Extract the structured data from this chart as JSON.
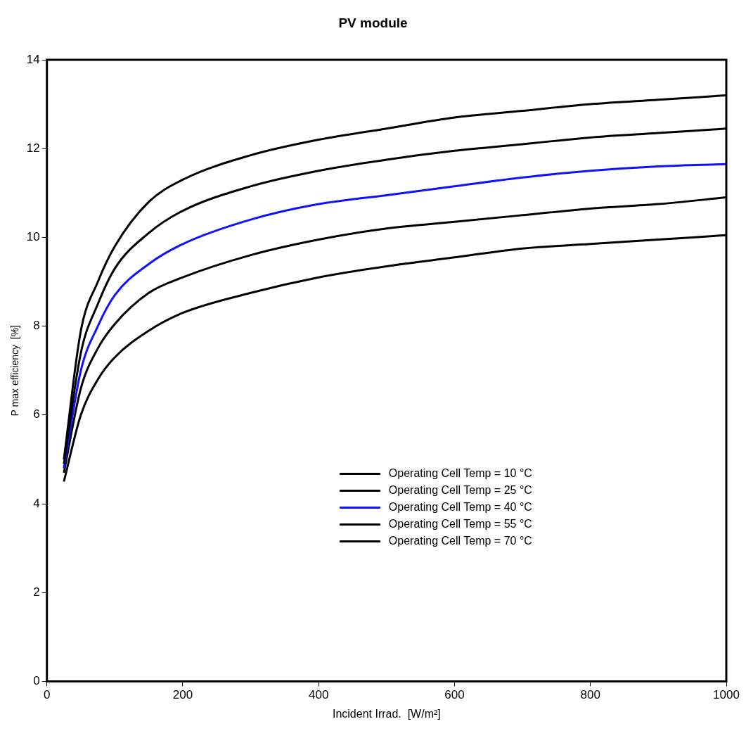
{
  "chart_data": {
    "type": "line",
    "title": "PV module",
    "xlabel": "Incident Irrad.  [W/m²]",
    "ylabel": "P max efficiency  [%]",
    "x": [
      25,
      50,
      75,
      100,
      150,
      200,
      300,
      400,
      500,
      600,
      700,
      800,
      900,
      1000
    ],
    "xlim": [
      0,
      1000
    ],
    "xticks": [
      0,
      200,
      400,
      600,
      800,
      1000
    ],
    "ylim": [
      0,
      14
    ],
    "yticks": [
      0,
      2,
      4,
      6,
      8,
      10,
      12,
      14
    ],
    "grid": false,
    "legend": "center",
    "marker": "none",
    "line_style": "solid",
    "series": [
      {
        "name": "Operating Cell Temp = 10 °C",
        "color": "#000000",
        "values": [
          5.0,
          7.9,
          9.0,
          9.8,
          10.8,
          11.3,
          11.85,
          12.2,
          12.45,
          12.7,
          12.85,
          13.0,
          13.1,
          13.2
        ]
      },
      {
        "name": "Operating Cell Temp = 25 °C",
        "color": "#000000",
        "values": [
          4.9,
          7.4,
          8.5,
          9.3,
          10.1,
          10.6,
          11.15,
          11.5,
          11.75,
          11.95,
          12.1,
          12.25,
          12.35,
          12.45
        ]
      },
      {
        "name": "Operating Cell Temp = 40 °C",
        "color": "#1010ff",
        "values": [
          4.8,
          7.0,
          8.0,
          8.7,
          9.4,
          9.85,
          10.4,
          10.75,
          10.95,
          11.15,
          11.35,
          11.5,
          11.6,
          11.65
        ]
      },
      {
        "name": "Operating Cell Temp = 55 °C",
        "color": "#000000",
        "values": [
          4.7,
          6.6,
          7.5,
          8.05,
          8.75,
          9.1,
          9.6,
          9.95,
          10.2,
          10.35,
          10.5,
          10.65,
          10.75,
          10.9
        ]
      },
      {
        "name": "Operating Cell Temp = 70 °C",
        "color": "#000000",
        "values": [
          4.5,
          6.0,
          6.8,
          7.3,
          7.9,
          8.3,
          8.75,
          9.1,
          9.35,
          9.55,
          9.75,
          9.85,
          9.95,
          10.05
        ]
      }
    ]
  }
}
